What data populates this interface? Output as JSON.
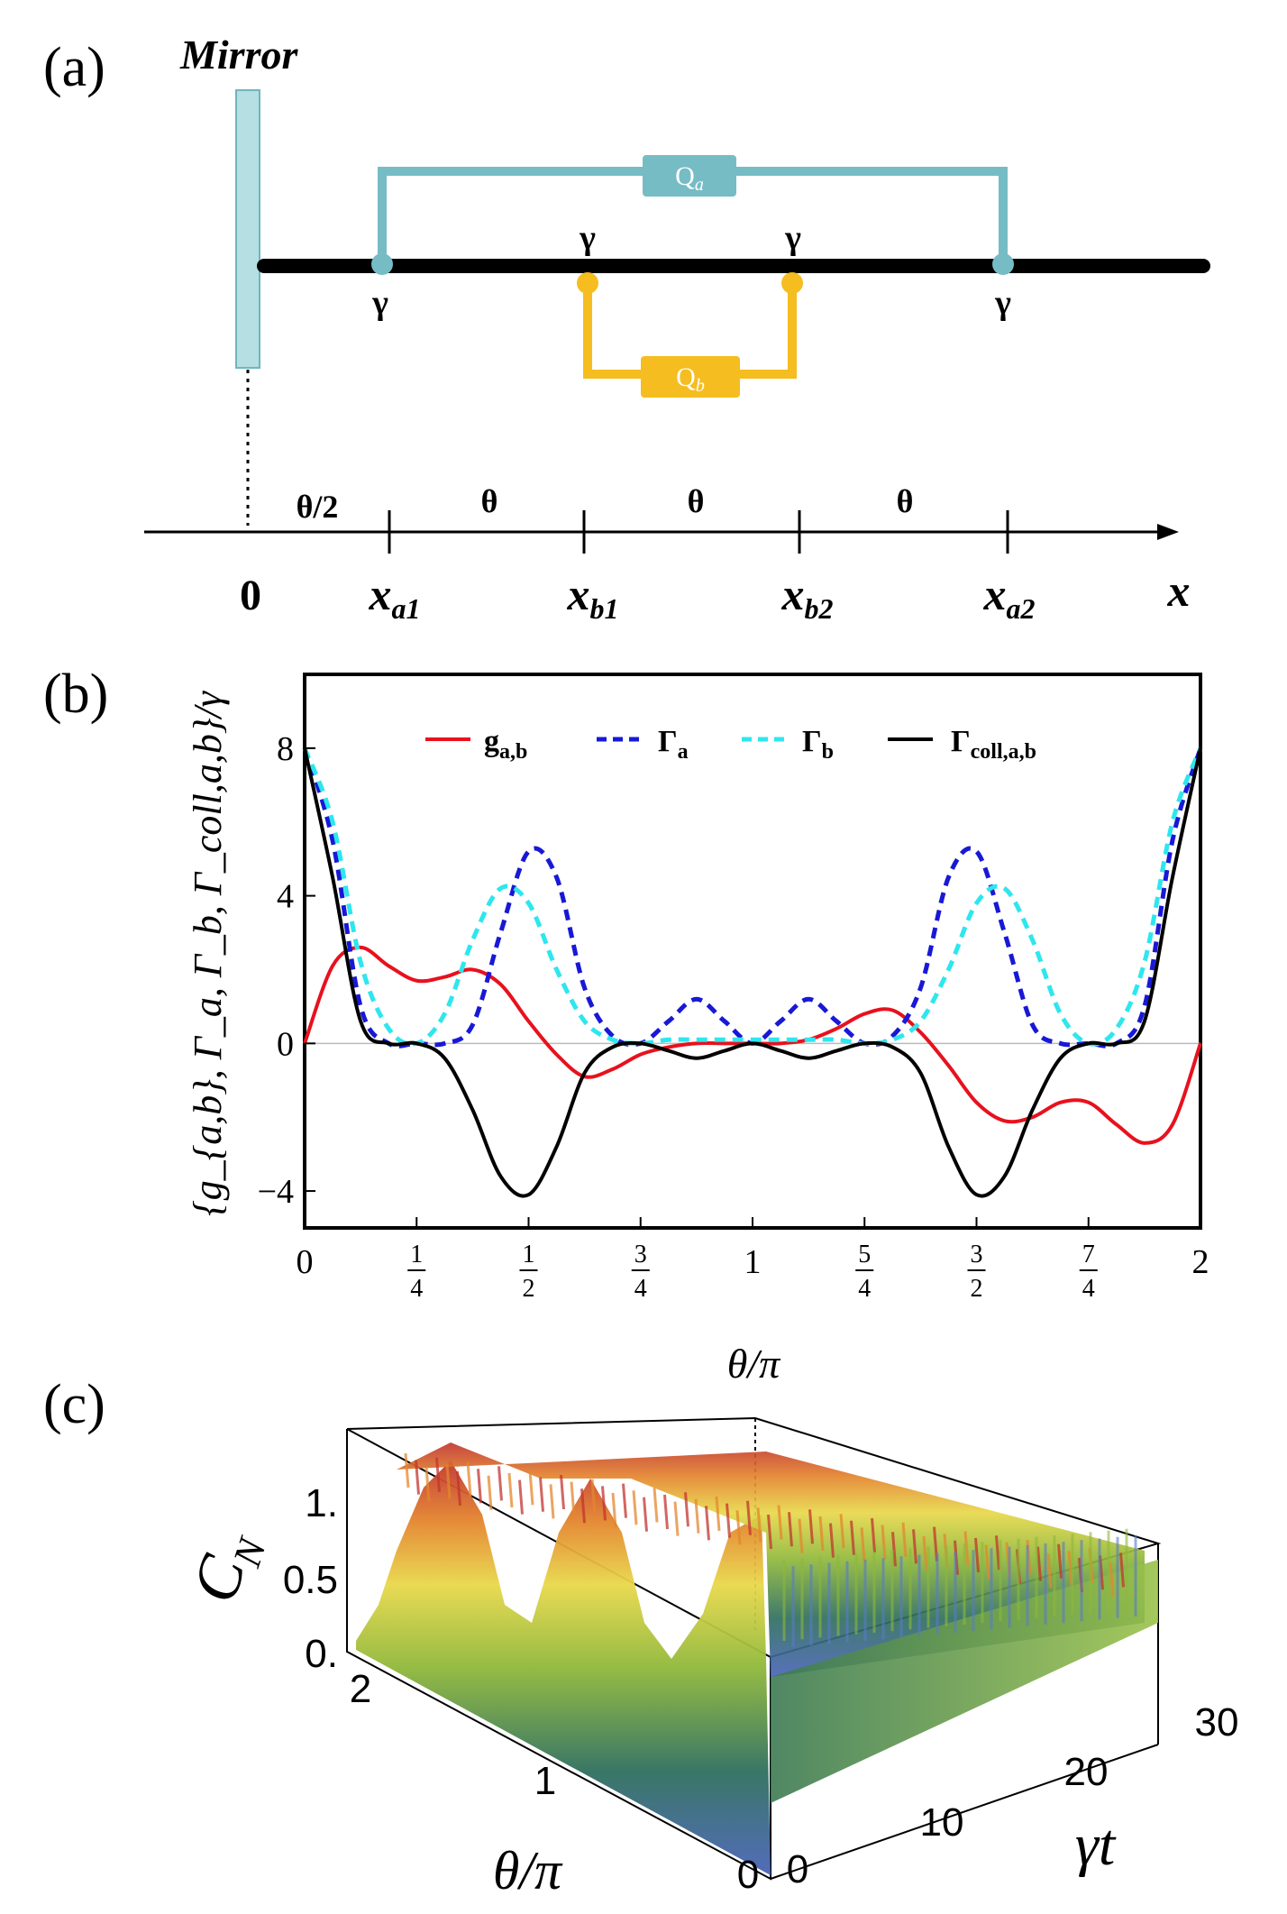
{
  "panels": {
    "a": {
      "label": "(a)",
      "mirror_label": "Mirror",
      "qubit_a_label": "Q",
      "qubit_a_sub": "a",
      "qubit_b_label": "Q",
      "qubit_b_sub": "b",
      "gamma_symbol": "γ",
      "axis_origin": "0",
      "axis_var": "x",
      "half_spacing": "θ/2",
      "spacing": [
        "θ",
        "θ",
        "θ"
      ],
      "positions": [
        {
          "main": "x",
          "sub": "a1"
        },
        {
          "main": "x",
          "sub": "b1"
        },
        {
          "main": "x",
          "sub": "b2"
        },
        {
          "main": "x",
          "sub": "a2"
        }
      ],
      "colors": {
        "qa": "#76bcc5",
        "qb": "#f5bd1f",
        "mirror": "#b5dfe2",
        "waveguide": "#000000"
      }
    },
    "b": {
      "label": "(b)"
    },
    "c": {
      "label": "(c)",
      "zlabel": "C",
      "zlabel_sub": "N",
      "z_ticks": [
        "0.",
        "0.5",
        "1."
      ],
      "x_ticks": [
        "0",
        "1",
        "2"
      ],
      "x_label": "θ/π",
      "y_ticks": [
        "0",
        "10",
        "20",
        "30"
      ],
      "y_label": "γt"
    }
  },
  "chart_data": {
    "type": "line",
    "title": "",
    "xlabel": "θ/π",
    "ylabel": "{g_{a,b}, Γ_a, Γ_b, Γ_coll,a,b}/γ",
    "xlim": [
      0,
      2
    ],
    "ylim": [
      -5,
      10
    ],
    "x_ticks": [
      0,
      0.25,
      0.5,
      0.75,
      1,
      1.25,
      1.5,
      1.75,
      2
    ],
    "x_tick_labels": [
      {
        "num": "0",
        "den": ""
      },
      {
        "num": "1",
        "den": "4"
      },
      {
        "num": "1",
        "den": "2"
      },
      {
        "num": "3",
        "den": "4"
      },
      {
        "num": "1",
        "den": ""
      },
      {
        "num": "5",
        "den": "4"
      },
      {
        "num": "3",
        "den": "2"
      },
      {
        "num": "7",
        "den": "4"
      },
      {
        "num": "2",
        "den": ""
      }
    ],
    "y_ticks": [
      -4,
      0,
      4,
      8
    ],
    "y_tick_labels": [
      "−4",
      "0",
      "4",
      "8"
    ],
    "legend_position": "top",
    "series": [
      {
        "name": "g",
        "sub": "a,b",
        "color": "#e8111d",
        "dash": "solid",
        "x": [
          0,
          0.0625,
          0.125,
          0.1875,
          0.25,
          0.3125,
          0.375,
          0.4375,
          0.5,
          0.5625,
          0.625,
          0.6875,
          0.75,
          0.8125,
          0.875,
          0.9375,
          1,
          1.0625,
          1.125,
          1.1875,
          1.25,
          1.3125,
          1.375,
          1.4375,
          1.5,
          1.5625,
          1.625,
          1.6875,
          1.75,
          1.8125,
          1.875,
          1.9375,
          2
        ],
        "values": [
          0,
          2.1,
          2.6,
          2.1,
          1.7,
          1.8,
          2.0,
          1.6,
          0.6,
          -0.3,
          -0.9,
          -0.7,
          -0.3,
          -0.1,
          0.0,
          0.0,
          0.0,
          0.0,
          0.1,
          0.4,
          0.8,
          0.9,
          0.3,
          -0.6,
          -1.6,
          -2.1,
          -2.0,
          -1.6,
          -1.6,
          -2.2,
          -2.7,
          -2.2,
          0
        ]
      },
      {
        "name": "Γ",
        "sub": "a",
        "color": "#1818d6",
        "dash": "dashed",
        "x": [
          0,
          0.0625,
          0.125,
          0.1875,
          0.25,
          0.3125,
          0.375,
          0.4375,
          0.5,
          0.5625,
          0.625,
          0.6875,
          0.75,
          0.8125,
          0.875,
          0.9375,
          1,
          1.0625,
          1.125,
          1.1875,
          1.25,
          1.3125,
          1.375,
          1.4375,
          1.5,
          1.5625,
          1.625,
          1.6875,
          1.75,
          1.8125,
          1.875,
          1.9375,
          2
        ],
        "values": [
          8,
          5.5,
          1.0,
          0.0,
          0.0,
          0.0,
          0.5,
          3.0,
          5.2,
          4.5,
          1.5,
          0.2,
          0.0,
          0.6,
          1.2,
          0.6,
          0.0,
          0.6,
          1.2,
          0.6,
          0.0,
          0.2,
          1.5,
          4.5,
          5.2,
          3.0,
          0.5,
          0.0,
          0.0,
          0.0,
          1.0,
          5.5,
          8
        ]
      },
      {
        "name": "Γ",
        "sub": "b",
        "color": "#2ee6ee",
        "dash": "dashed",
        "x": [
          0,
          0.0625,
          0.125,
          0.1875,
          0.25,
          0.3125,
          0.375,
          0.4375,
          0.5,
          0.5625,
          0.625,
          0.6875,
          0.75,
          0.8125,
          0.875,
          0.9375,
          1,
          1.0625,
          1.125,
          1.1875,
          1.25,
          1.3125,
          1.375,
          1.4375,
          1.5,
          1.5625,
          1.625,
          1.6875,
          1.75,
          1.8125,
          1.875,
          1.9375,
          2
        ],
        "values": [
          8,
          6.0,
          2.2,
          0.4,
          0.0,
          0.8,
          2.8,
          4.2,
          3.8,
          2.0,
          0.6,
          0.1,
          0.0,
          0.1,
          0.1,
          0.1,
          0.1,
          0.1,
          0.1,
          0.1,
          0.0,
          0.1,
          0.6,
          2.0,
          3.8,
          4.2,
          2.8,
          0.8,
          0.0,
          0.4,
          2.2,
          6.0,
          8
        ]
      },
      {
        "name": "Γ",
        "sub": "coll,a,b",
        "color": "#000000",
        "dash": "solid",
        "x": [
          0,
          0.0625,
          0.125,
          0.1875,
          0.25,
          0.3125,
          0.375,
          0.4375,
          0.5,
          0.5625,
          0.625,
          0.6875,
          0.75,
          0.8125,
          0.875,
          0.9375,
          1,
          1.0625,
          1.125,
          1.1875,
          1.25,
          1.3125,
          1.375,
          1.4375,
          1.5,
          1.5625,
          1.625,
          1.6875,
          1.75,
          1.8125,
          1.875,
          1.9375,
          2
        ],
        "values": [
          8,
          4.5,
          0.6,
          0.0,
          0.0,
          -0.4,
          -1.8,
          -3.6,
          -4.1,
          -2.8,
          -0.8,
          -0.1,
          0.0,
          -0.2,
          -0.4,
          -0.2,
          0.0,
          -0.2,
          -0.4,
          -0.2,
          0.0,
          -0.1,
          -0.8,
          -2.8,
          -4.1,
          -3.6,
          -1.8,
          -0.4,
          0.0,
          0.0,
          0.6,
          4.5,
          8
        ]
      }
    ]
  }
}
